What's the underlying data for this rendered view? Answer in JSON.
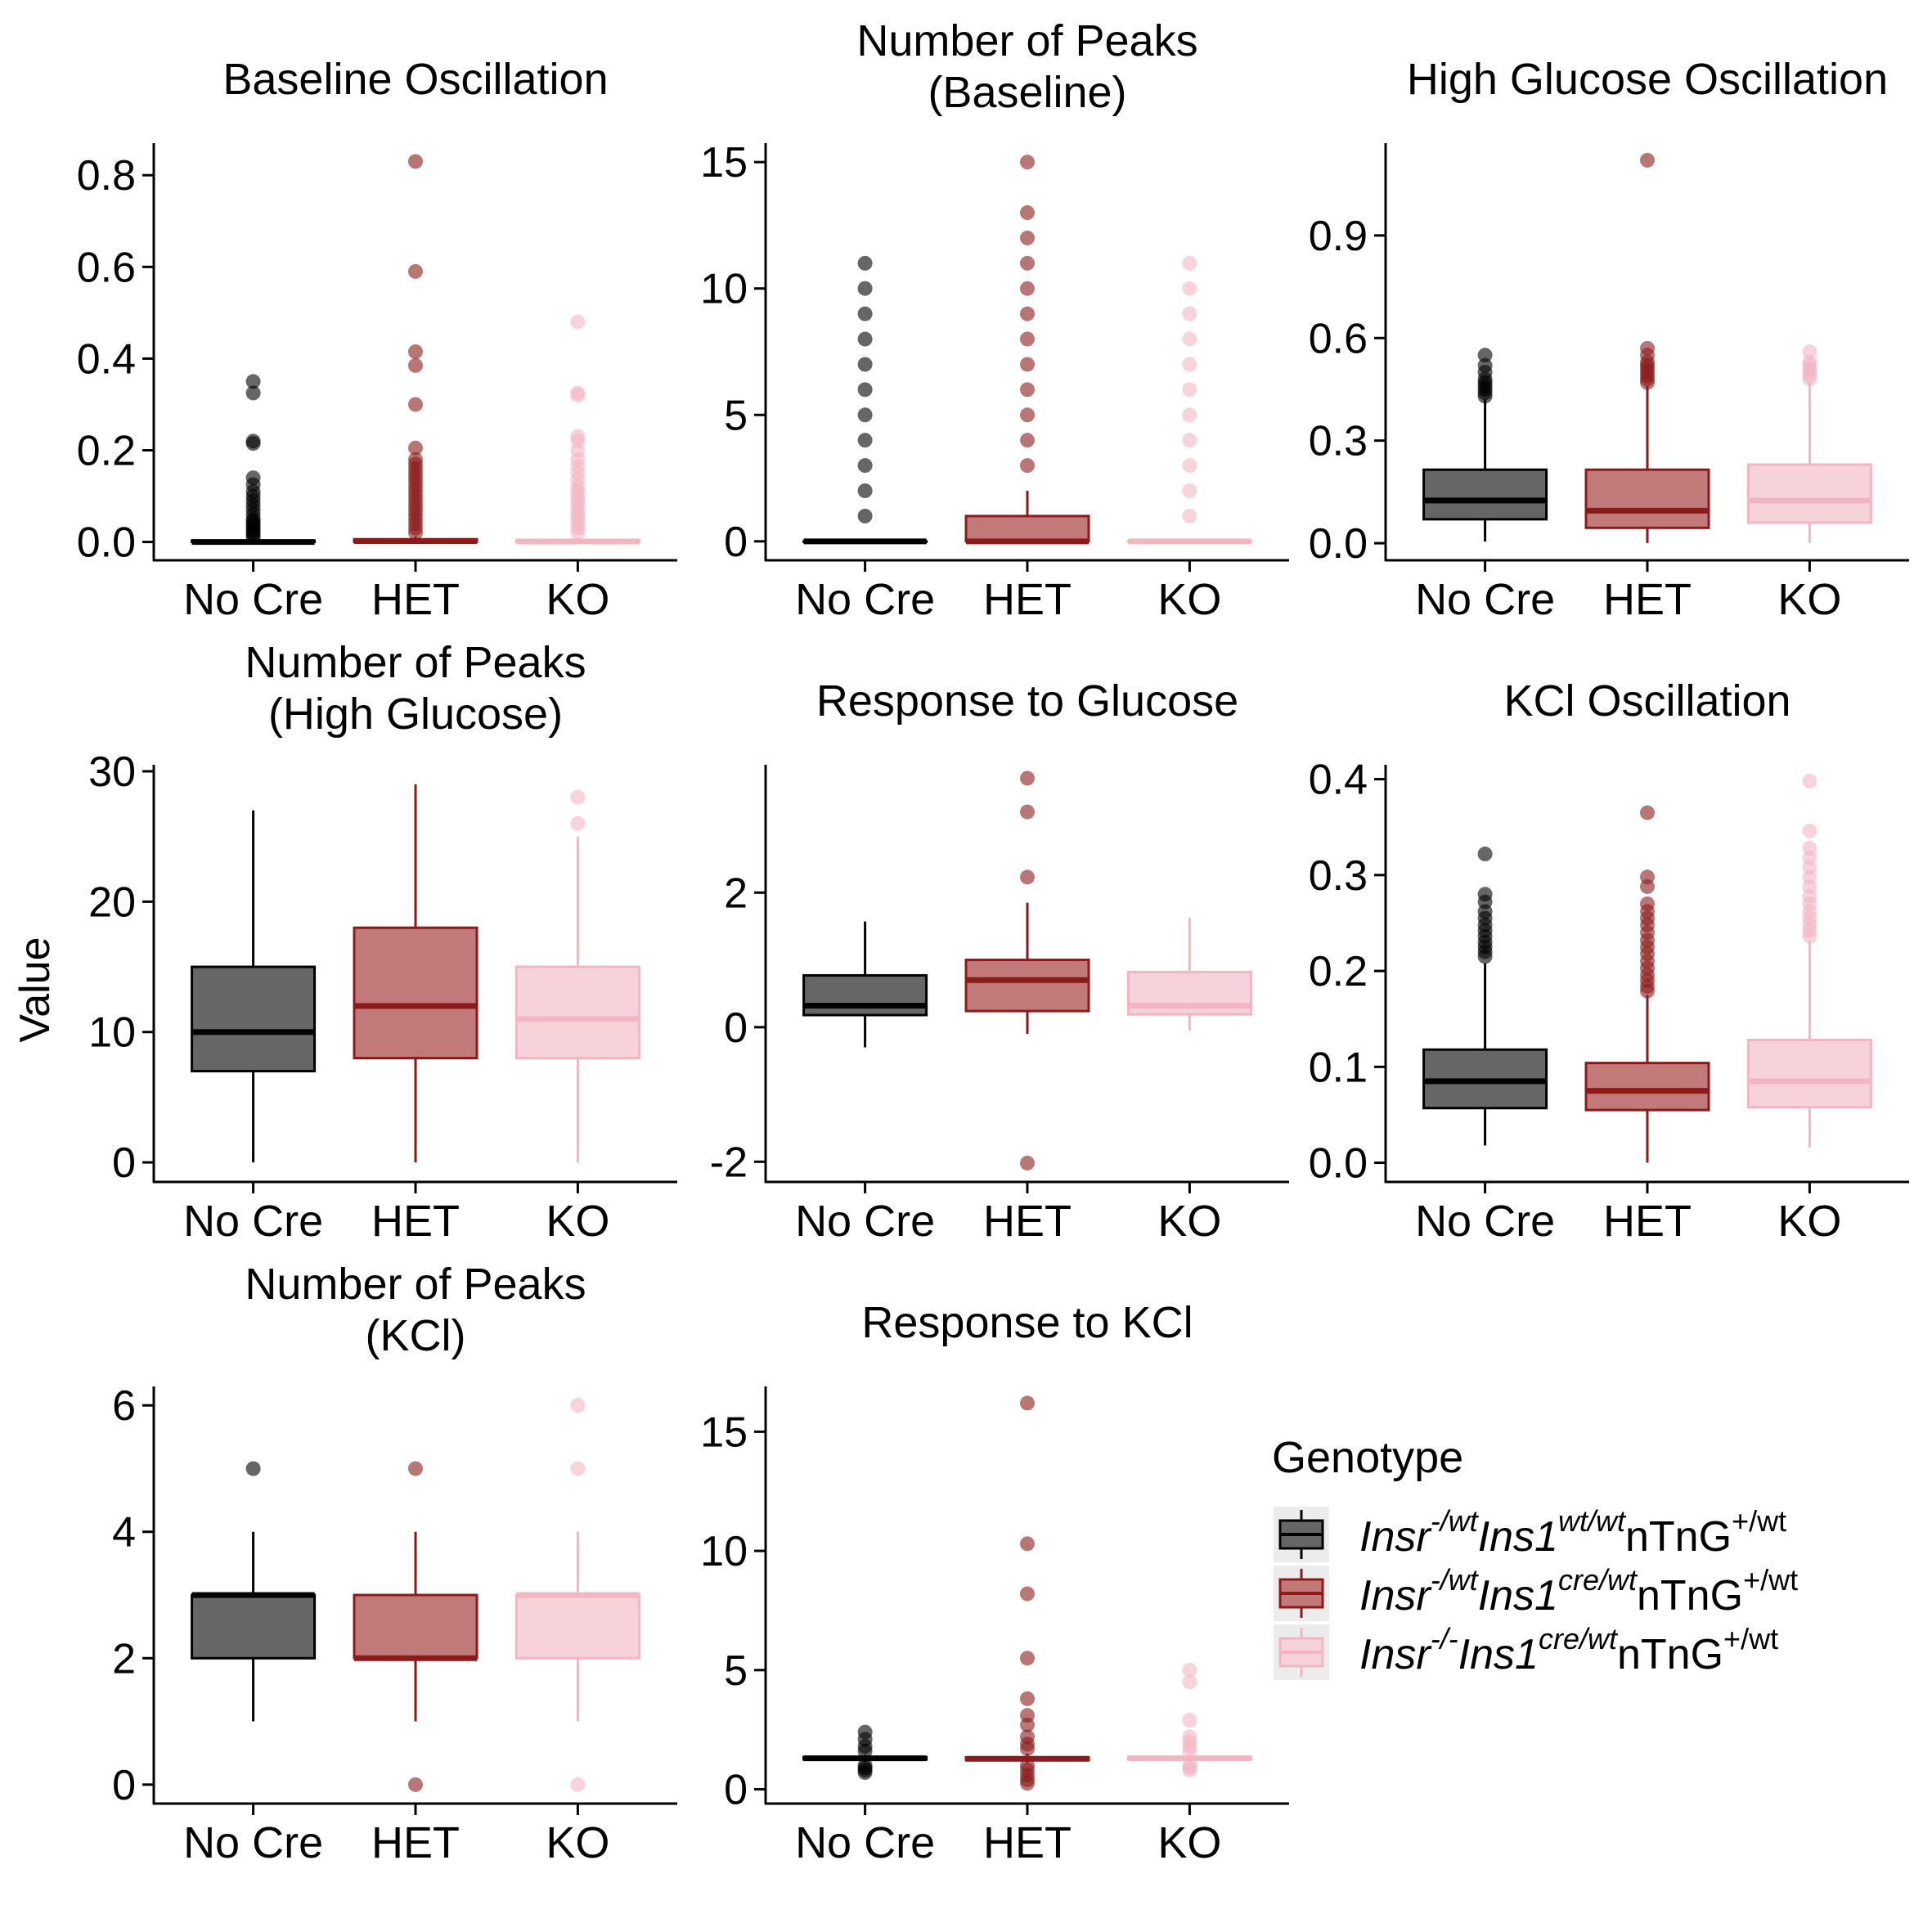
{
  "figure": {
    "ylabel": "Value",
    "categories": [
      "No Cre",
      "HET",
      "KO"
    ],
    "colors": {
      "no_cre": {
        "fill": "#666666",
        "line": "#000000",
        "point": "#000000"
      },
      "het": {
        "fill": "#c17a79",
        "line": "#8b1a1a",
        "point": "#8b1a1a"
      },
      "ko": {
        "fill": "#f6d2da",
        "line": "#f2b6c3",
        "point": "#f2b6c3"
      }
    }
  },
  "legend": {
    "title": "Genotype",
    "items": [
      {
        "key": "no_cre",
        "a": "Insr",
        "a_sup": "-/wt",
        "b": "Ins1",
        "b_sup": "wt/wt",
        "c": "nTnG",
        "c_sup": "+/wt"
      },
      {
        "key": "het",
        "a": "Insr",
        "a_sup": "-/wt",
        "b": "Ins1",
        "b_sup": "cre/wt",
        "c": "nTnG",
        "c_sup": "+/wt"
      },
      {
        "key": "ko",
        "a": "Insr",
        "a_sup": "-/-",
        "b": "Ins1",
        "b_sup": "cre/wt",
        "c": "nTnG",
        "c_sup": "+/wt"
      }
    ]
  },
  "chart_data": [
    {
      "type": "box",
      "title": [
        "Baseline Oscillation"
      ],
      "categories": [
        "No Cre",
        "HET",
        "KO"
      ],
      "yticks": [
        0.0,
        0.2,
        0.4,
        0.6,
        0.8
      ],
      "yticklabels": [
        "0.0",
        "0.2",
        "0.4",
        "0.6",
        "0.8"
      ],
      "ylim": [
        -0.04,
        0.87
      ],
      "series": [
        {
          "key": "no_cre",
          "min": 0.0,
          "q1": 0.0,
          "median": 0.0,
          "q3": 0.003,
          "max": 0.006,
          "outliers": [
            0.35,
            0.325,
            0.22,
            0.215,
            0.14,
            0.125,
            0.11,
            0.1,
            0.09,
            0.08,
            0.07,
            0.06,
            0.05,
            0.045,
            0.04,
            0.035,
            0.03,
            0.025,
            0.02,
            0.015,
            0.01
          ]
        },
        {
          "key": "het",
          "min": 0.0,
          "q1": 0.0,
          "median": 0.002,
          "q3": 0.006,
          "max": 0.012,
          "outliers": [
            0.83,
            0.59,
            0.415,
            0.385,
            0.3,
            0.205,
            0.18,
            0.17,
            0.16,
            0.15,
            0.14,
            0.13,
            0.12,
            0.11,
            0.1,
            0.09,
            0.08,
            0.07,
            0.06,
            0.05,
            0.04,
            0.03,
            0.02
          ]
        },
        {
          "key": "ko",
          "min": 0.0,
          "q1": 0.0,
          "median": 0.001,
          "q3": 0.004,
          "max": 0.009,
          "outliers": [
            0.48,
            0.325,
            0.32,
            0.23,
            0.22,
            0.2,
            0.18,
            0.165,
            0.15,
            0.135,
            0.12,
            0.11,
            0.1,
            0.09,
            0.08,
            0.07,
            0.06,
            0.05,
            0.04,
            0.03,
            0.02
          ]
        }
      ]
    },
    {
      "type": "box",
      "title": [
        "Number of Peaks",
        "(Baseline)"
      ],
      "categories": [
        "No Cre",
        "HET",
        "KO"
      ],
      "yticks": [
        0,
        5,
        10,
        15
      ],
      "yticklabels": [
        "0",
        "5",
        "10",
        "15"
      ],
      "ylim": [
        -0.75,
        15.75
      ],
      "series": [
        {
          "key": "no_cre",
          "min": 0,
          "q1": 0,
          "median": 0,
          "q3": 0,
          "max": 0,
          "outliers": [
            1,
            2,
            3,
            4,
            5,
            6,
            7,
            8,
            9,
            10,
            11
          ]
        },
        {
          "key": "het",
          "min": 0,
          "q1": 0,
          "median": 0,
          "q3": 1,
          "max": 2,
          "outliers": [
            3,
            4,
            5,
            6,
            7,
            8,
            9,
            10,
            11,
            12,
            13,
            15
          ]
        },
        {
          "key": "ko",
          "min": 0,
          "q1": 0,
          "median": 0,
          "q3": 0,
          "max": 0,
          "outliers": [
            1,
            2,
            3,
            4,
            5,
            6,
            7,
            8,
            9,
            10,
            11
          ]
        }
      ]
    },
    {
      "type": "box",
      "title": [
        "High Glucose Oscillation"
      ],
      "categories": [
        "No Cre",
        "HET",
        "KO"
      ],
      "yticks": [
        0.0,
        0.3,
        0.6,
        0.9
      ],
      "yticklabels": [
        "0.0",
        "0.3",
        "0.6",
        "0.9"
      ],
      "ylim": [
        -0.05,
        1.17
      ],
      "series": [
        {
          "key": "no_cre",
          "min": 0.005,
          "q1": 0.07,
          "median": 0.125,
          "q3": 0.215,
          "max": 0.42,
          "outliers": [
            0.55,
            0.52,
            0.5,
            0.48,
            0.47,
            0.46,
            0.45,
            0.44,
            0.43
          ]
        },
        {
          "key": "het",
          "min": 0.0,
          "q1": 0.045,
          "median": 0.095,
          "q3": 0.215,
          "max": 0.46,
          "outliers": [
            1.12,
            0.57,
            0.55,
            0.53,
            0.52,
            0.51,
            0.5,
            0.49,
            0.48,
            0.47
          ]
        },
        {
          "key": "ko",
          "min": 0.0,
          "q1": 0.06,
          "median": 0.125,
          "q3": 0.23,
          "max": 0.47,
          "outliers": [
            0.56,
            0.53,
            0.52,
            0.51,
            0.5,
            0.49,
            0.48
          ]
        }
      ]
    },
    {
      "type": "box",
      "title": [
        "Number of Peaks",
        "(High Glucose)"
      ],
      "categories": [
        "No Cre",
        "HET",
        "KO"
      ],
      "yticks": [
        0,
        10,
        20,
        30
      ],
      "yticklabels": [
        "0",
        "10",
        "20",
        "30"
      ],
      "ylim": [
        -1.5,
        30.5
      ],
      "series": [
        {
          "key": "no_cre",
          "min": 0,
          "q1": 7,
          "median": 10,
          "q3": 15,
          "max": 27,
          "outliers": []
        },
        {
          "key": "het",
          "min": 0,
          "q1": 8,
          "median": 12,
          "q3": 18,
          "max": 29,
          "outliers": []
        },
        {
          "key": "ko",
          "min": 0,
          "q1": 8,
          "median": 11,
          "q3": 15,
          "max": 25,
          "outliers": [
            26,
            28
          ]
        }
      ]
    },
    {
      "type": "box",
      "title": [
        "Response to Glucose"
      ],
      "categories": [
        "No Cre",
        "HET",
        "KO"
      ],
      "yticks": [
        -2,
        0,
        2
      ],
      "yticklabels": [
        "-2",
        "0",
        "2"
      ],
      "ylim": [
        -2.3,
        3.9
      ],
      "series": [
        {
          "key": "no_cre",
          "min": -0.3,
          "q1": 0.18,
          "median": 0.32,
          "q3": 0.77,
          "max": 1.57,
          "outliers": []
        },
        {
          "key": "het",
          "min": -0.1,
          "q1": 0.24,
          "median": 0.7,
          "q3": 1.0,
          "max": 1.85,
          "outliers": [
            3.7,
            3.2,
            2.23,
            -2.02
          ]
        },
        {
          "key": "ko",
          "min": -0.05,
          "q1": 0.19,
          "median": 0.32,
          "q3": 0.82,
          "max": 1.62,
          "outliers": []
        }
      ]
    },
    {
      "type": "box",
      "title": [
        "KCl Oscillation"
      ],
      "categories": [
        "No Cre",
        "HET",
        "KO"
      ],
      "yticks": [
        0.0,
        0.1,
        0.2,
        0.3,
        0.4
      ],
      "yticklabels": [
        "0.0",
        "0.1",
        "0.2",
        "0.3",
        "0.4"
      ],
      "ylim": [
        -0.02,
        0.415
      ],
      "series": [
        {
          "key": "no_cre",
          "min": 0.018,
          "q1": 0.057,
          "median": 0.085,
          "q3": 0.118,
          "max": 0.208,
          "outliers": [
            0.322,
            0.28,
            0.272,
            0.262,
            0.255,
            0.248,
            0.242,
            0.236,
            0.23,
            0.225,
            0.22,
            0.215
          ]
        },
        {
          "key": "het",
          "min": 0.0,
          "q1": 0.055,
          "median": 0.075,
          "q3": 0.104,
          "max": 0.175,
          "outliers": [
            0.365,
            0.298,
            0.288,
            0.27,
            0.262,
            0.255,
            0.248,
            0.24,
            0.232,
            0.225,
            0.218,
            0.21,
            0.203,
            0.196,
            0.19,
            0.184,
            0.179
          ]
        },
        {
          "key": "ko",
          "min": 0.016,
          "q1": 0.058,
          "median": 0.085,
          "q3": 0.128,
          "max": 0.232,
          "outliers": [
            0.398,
            0.346,
            0.328,
            0.318,
            0.308,
            0.298,
            0.288,
            0.278,
            0.27,
            0.262,
            0.255,
            0.248,
            0.242,
            0.236
          ]
        }
      ]
    },
    {
      "type": "box",
      "title": [
        "Number of Peaks",
        "(KCl)"
      ],
      "categories": [
        "No Cre",
        "HET",
        "KO"
      ],
      "yticks": [
        0,
        2,
        4,
        6
      ],
      "yticklabels": [
        "0",
        "2",
        "4",
        "6"
      ],
      "ylim": [
        -0.3,
        6.3
      ],
      "series": [
        {
          "key": "no_cre",
          "min": 1,
          "q1": 2,
          "median": 3,
          "q3": 3,
          "max": 4,
          "outliers": [
            5
          ]
        },
        {
          "key": "het",
          "min": 1,
          "q1": 2,
          "median": 2,
          "q3": 3,
          "max": 4,
          "outliers": [
            5,
            0
          ]
        },
        {
          "key": "ko",
          "min": 1,
          "q1": 2,
          "median": 3,
          "q3": 3,
          "max": 4,
          "outliers": [
            6,
            5,
            0
          ]
        }
      ]
    },
    {
      "type": "box",
      "title": [
        "Response to KCl"
      ],
      "categories": [
        "No Cre",
        "HET",
        "KO"
      ],
      "yticks": [
        0,
        5,
        10,
        15
      ],
      "yticklabels": [
        "0",
        "5",
        "10",
        "15"
      ],
      "ylim": [
        -0.6,
        16.9
      ],
      "series": [
        {
          "key": "no_cre",
          "min": 1.15,
          "q1": 1.25,
          "median": 1.3,
          "q3": 1.35,
          "max": 1.45,
          "outliers": [
            2.4,
            2.1,
            1.8,
            1.6,
            1.0,
            0.9,
            0.8,
            0.7
          ]
        },
        {
          "key": "het",
          "min": 1.1,
          "q1": 1.22,
          "median": 1.28,
          "q3": 1.34,
          "max": 1.5,
          "outliers": [
            16.2,
            10.3,
            8.2,
            5.5,
            3.8,
            3.1,
            2.7,
            2.2,
            1.9,
            1.7,
            1.0,
            0.8,
            0.6,
            0.4,
            0.25
          ]
        },
        {
          "key": "ko",
          "min": 1.15,
          "q1": 1.25,
          "median": 1.3,
          "q3": 1.35,
          "max": 1.45,
          "outliers": [
            5.0,
            4.5,
            2.9,
            2.2,
            2.0,
            1.8,
            1.6,
            1.0,
            0.9,
            0.8
          ]
        }
      ]
    }
  ]
}
